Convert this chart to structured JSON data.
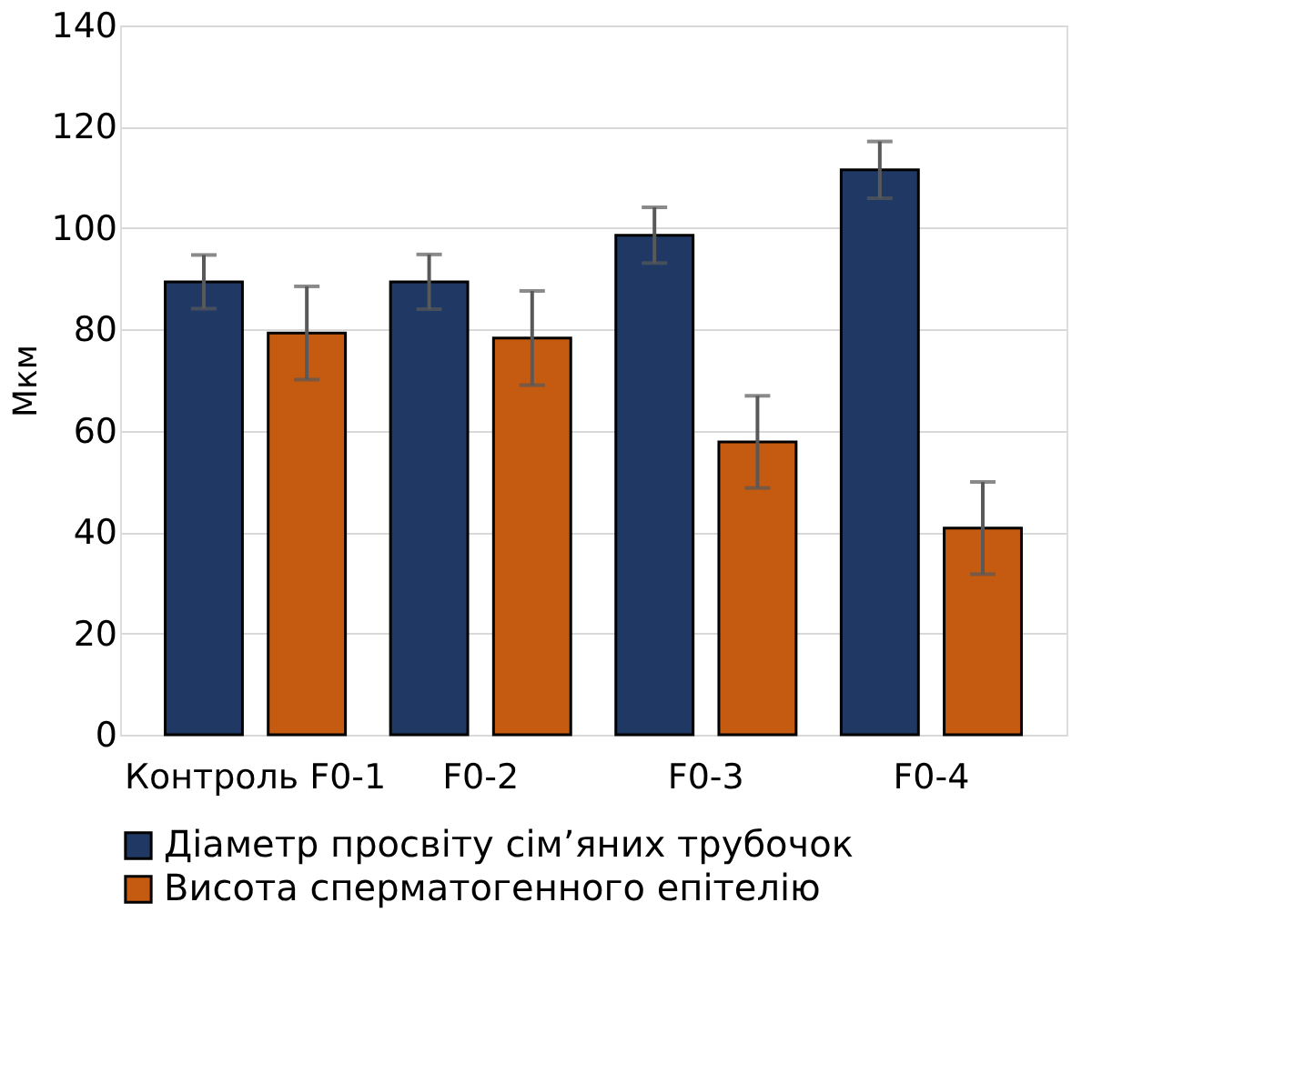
{
  "chart_data": {
    "type": "bar",
    "ylabel": "Мкм",
    "categories": [
      "Контроль F0-1",
      "F0-2",
      "F0-3",
      "F0-4"
    ],
    "series": [
      {
        "name": "Діаметр просвіту сім’яних трубочок",
        "color": "#203864",
        "values": [
          89.4,
          89.4,
          98.6,
          111.5
        ],
        "errors": [
          5.3,
          5.4,
          5.5,
          5.6
        ]
      },
      {
        "name": "Висота сперматогенного епітелію",
        "color": "#c55a11",
        "values": [
          79.3,
          78.3,
          57.8,
          40.8
        ],
        "errors": [
          9.2,
          9.3,
          9.1,
          9.1
        ]
      }
    ],
    "ylim": [
      0,
      140
    ],
    "yticks": [
      0,
      20,
      40,
      60,
      80,
      100,
      120,
      140
    ],
    "grid": "y",
    "legend": "bottom"
  }
}
